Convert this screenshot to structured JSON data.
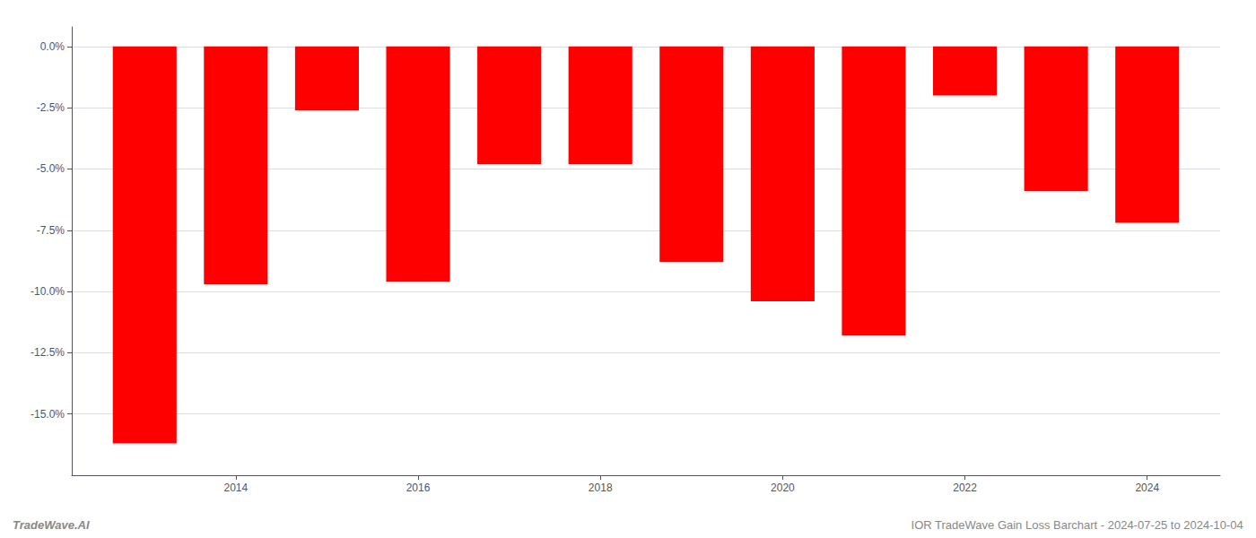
{
  "chart_data": {
    "type": "bar",
    "x": [
      2013,
      2014,
      2015,
      2016,
      2017,
      2018,
      2019,
      2020,
      2021,
      2022,
      2023,
      2024
    ],
    "values": [
      -16.2,
      -9.7,
      -2.6,
      -9.6,
      -4.8,
      -4.8,
      -8.8,
      -10.4,
      -11.8,
      -2.0,
      -5.9,
      -7.2
    ],
    "color": "#FF0000",
    "xlim": [
      2012.2,
      2024.8
    ],
    "xticks": [
      2014,
      2016,
      2018,
      2020,
      2022,
      2024
    ],
    "ylim": [
      -17.5,
      0.8
    ],
    "yticks": [
      {
        "value": 0.0,
        "label": "0.0%"
      },
      {
        "value": -2.5,
        "label": "-2.5%"
      },
      {
        "value": -5.0,
        "label": "-5.0%"
      },
      {
        "value": -7.5,
        "label": "-7.5%"
      },
      {
        "value": -10.0,
        "label": "-10.0%"
      },
      {
        "value": -12.5,
        "label": "-12.5%"
      },
      {
        "value": -15.0,
        "label": "-15.0%"
      }
    ],
    "grid": true,
    "annotations": [
      "TradeWave.AI",
      "IOR TradeWave Gain Loss Barchart - 2024-07-25 to 2024-10-04"
    ]
  }
}
